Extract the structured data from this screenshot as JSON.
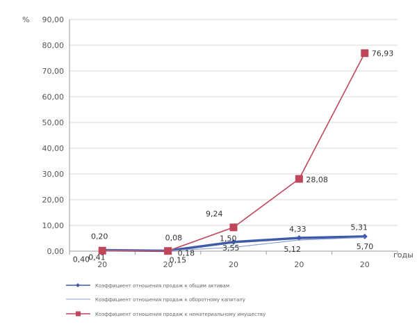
{
  "chart_data": {
    "type": "line",
    "ylabel": "%",
    "xlabel": "годы",
    "ylim": [
      0,
      90
    ],
    "yticks": [
      "0,00",
      "10,00",
      "20,00",
      "30,00",
      "40,00",
      "50,00",
      "60,00",
      "70,00",
      "80,00",
      "90,00"
    ],
    "categories": [
      "20",
      "20",
      "20",
      "20",
      "20"
    ],
    "grid": "horizontal",
    "legend_position": "bottom",
    "series": [
      {
        "name": "Коэффициент отношения продаж к общим активам",
        "color": "#3f5aa8",
        "marker": "diamond",
        "values": [
          0.41,
          0.15,
          3.55,
          5.12,
          5.7
        ],
        "labels": [
          "0,41",
          "0,15",
          "3,55",
          "5,12",
          "5,70"
        ]
      },
      {
        "name": "Коэффициент отношения продаж к оборотному капиталу",
        "color": "#8a9fd0",
        "marker": "none",
        "values": [
          0.4,
          0.18,
          1.5,
          4.33,
          5.31
        ],
        "labels": [
          "0,40",
          "0,18",
          "1,50",
          "4,33",
          "5,31"
        ]
      },
      {
        "name": "Коэффициент отношения продаж к нематериальному имуществу",
        "color": "#c0475b",
        "marker": "square",
        "values": [
          0.2,
          0.08,
          9.24,
          28.08,
          76.93
        ],
        "labels": [
          "0,20",
          "0,08",
          "9,24",
          "28,08",
          "76,93"
        ]
      }
    ]
  }
}
